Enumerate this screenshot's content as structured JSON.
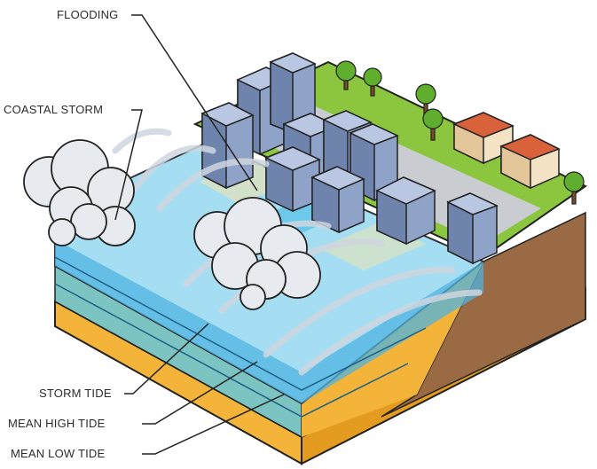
{
  "labels": {
    "flooding": "FLOODING",
    "coastal_storm": "COASTAL STORM",
    "storm_tide": "STORM TIDE",
    "mean_high_tide": "MEAN HIGH TIDE",
    "mean_low_tide": "MEAN LOW TIDE"
  },
  "colors": {
    "grass": "#8cc63f",
    "soil": "#9a6a45",
    "sand": "#f4b43a",
    "water_light": "#9edcf2",
    "water_deep": "#4fb3e0",
    "seafloor": "#6fae97",
    "building": "#8fa3c9",
    "road": "#c9ccd1",
    "cloud": "#e7eaee",
    "outline": "#222222"
  }
}
